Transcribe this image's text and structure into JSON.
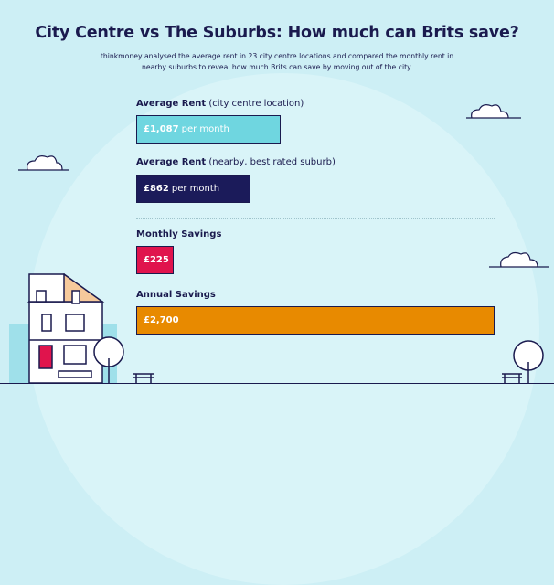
{
  "title": "City Centre vs The Suburbs: How much can Brits save?",
  "subtitle": "thinkmoney analysed the average rent in 23 city centre locations and compared the monthly rent in nearby suburbs to reveal how much Brits can save by moving out of the city.",
  "colors": {
    "city_centre": "#6fd6e0",
    "suburb": "#1b1b5a",
    "monthly_savings": "#e0144d",
    "annual_savings": "#e88a00",
    "outline": "#1a1a4e"
  },
  "chart_data": {
    "type": "bar",
    "orientation": "horizontal",
    "title": "City Centre vs The Suburbs: How much can Brits save?",
    "bars": [
      {
        "label_bold": "Average Rent",
        "label_rest": " (city centre location)",
        "value": 1087,
        "value_text": "£1,087",
        "suffix": "per month",
        "color": "#6fd6e0"
      },
      {
        "label_bold": "Average Rent",
        "label_rest": " (nearby, best rated suburb)",
        "value": 862,
        "value_text": "£862",
        "suffix": "per month",
        "color": "#1b1b5a"
      },
      {
        "label_bold": "Monthly Savings",
        "label_rest": "",
        "value": 225,
        "value_text": "£225",
        "suffix": "",
        "color": "#e0144d"
      },
      {
        "label_bold": "Annual Savings",
        "label_rest": "",
        "value": 2700,
        "value_text": "£2,700",
        "suffix": "",
        "color": "#e88a00"
      }
    ]
  }
}
